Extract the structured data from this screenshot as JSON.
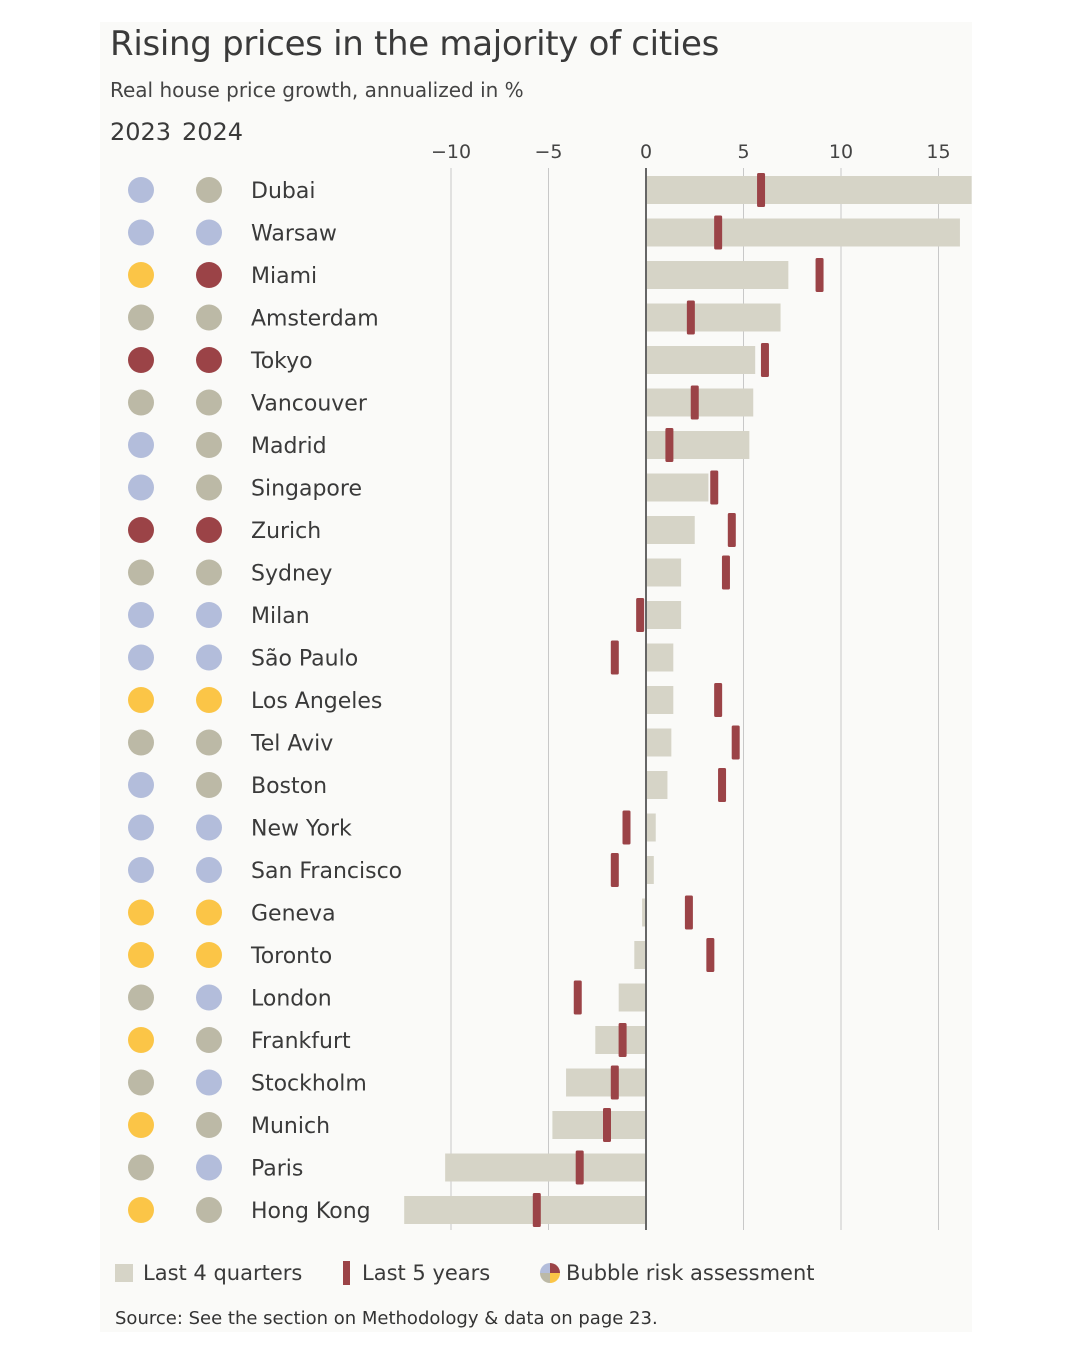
{
  "title": "Rising prices in the majority of cities",
  "subtitle": "Real house price growth, annualized in %",
  "year_labels": [
    "2023",
    "2024"
  ],
  "legend": {
    "last_4_quarters": "Last 4 quarters",
    "last_5_years": "Last 5 years",
    "bubble_risk": "Bubble risk assessment"
  },
  "source": "Source: See the section on Methodology & data on page 23.",
  "colors": {
    "bar": "#d6d4c7",
    "marker": "#9b4347",
    "risk_blue": "#b3bddb",
    "risk_gray": "#bcb9a6",
    "risk_yellow": "#fbc547",
    "risk_red": "#9b4347",
    "axis": "#666666",
    "grid": "#c8c8c8"
  },
  "chart_data": {
    "type": "bar",
    "orientation": "horizontal",
    "xlim": [
      -11.5,
      16.5
    ],
    "xticks": [
      -10,
      -5,
      0,
      5,
      10,
      15
    ],
    "tick_labels": [
      "−10",
      "−5",
      "0",
      "5",
      "10",
      "15"
    ],
    "categories": [
      "Dubai",
      "Warsaw",
      "Miami",
      "Amsterdam",
      "Tokyo",
      "Vancouver",
      "Madrid",
      "Singapore",
      "Zurich",
      "Sydney",
      "Milan",
      "São Paulo",
      "Los Angeles",
      "Tel Aviv",
      "Boston",
      "New York",
      "San Francisco",
      "Geneva",
      "Toronto",
      "London",
      "Frankfurt",
      "Stockholm",
      "Munich",
      "Paris",
      "Hong Kong"
    ],
    "series": [
      {
        "name": "Last 4 quarters",
        "values": [
          16.7,
          16.1,
          7.3,
          6.9,
          5.6,
          5.5,
          5.3,
          3.2,
          2.5,
          1.8,
          1.8,
          1.4,
          1.4,
          1.3,
          1.1,
          0.5,
          0.4,
          -0.2,
          -0.6,
          -1.4,
          -2.6,
          -4.1,
          -4.8,
          -10.3,
          -12.4
        ]
      },
      {
        "name": "Last 5 years",
        "values": [
          5.9,
          3.7,
          8.9,
          2.3,
          6.1,
          2.5,
          1.2,
          3.5,
          4.4,
          4.1,
          -0.3,
          -1.6,
          3.7,
          4.6,
          3.9,
          -1.0,
          -1.6,
          2.2,
          3.3,
          -3.5,
          -1.2,
          -1.6,
          -2.0,
          -3.4,
          -5.6
        ]
      }
    ],
    "bubble_risk": {
      "2023": [
        "blue",
        "blue",
        "yellow",
        "gray",
        "red",
        "gray",
        "blue",
        "blue",
        "red",
        "gray",
        "blue",
        "blue",
        "yellow",
        "gray",
        "blue",
        "blue",
        "blue",
        "yellow",
        "yellow",
        "gray",
        "yellow",
        "gray",
        "yellow",
        "gray",
        "yellow"
      ],
      "2024": [
        "gray",
        "blue",
        "red",
        "gray",
        "red",
        "gray",
        "gray",
        "gray",
        "red",
        "gray",
        "blue",
        "blue",
        "yellow",
        "gray",
        "gray",
        "blue",
        "blue",
        "yellow",
        "yellow",
        "blue",
        "gray",
        "blue",
        "gray",
        "blue",
        "gray"
      ]
    },
    "grid": true
  }
}
